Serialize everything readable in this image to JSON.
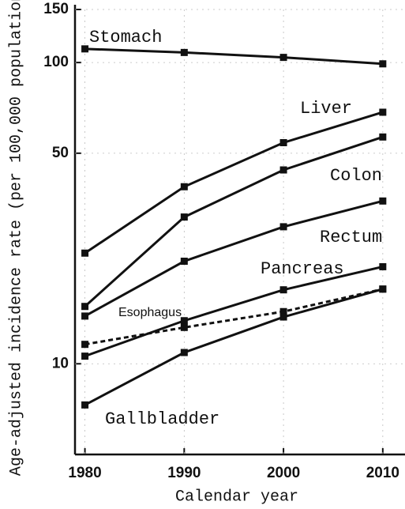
{
  "chart_data": {
    "type": "line",
    "x_label": "Calendar year",
    "y_label": "Age-adjusted incidence rate (per 100,000 population)",
    "x": [
      1980,
      1990,
      2000,
      2010
    ],
    "xlim": [
      1979,
      2012
    ],
    "xticks": [
      1980,
      1990,
      2000,
      2010
    ],
    "ylim": [
      5,
      150
    ],
    "yticks": [
      10,
      50,
      100,
      150
    ],
    "log_scale_y": true,
    "series": [
      {
        "name": "Stomach",
        "color": "#111111",
        "line_style": "solid",
        "values": [
          111,
          108,
          104,
          99
        ]
      },
      {
        "name": "Liver",
        "color": "#111111",
        "line_style": "solid",
        "values": [
          23.3,
          38.7,
          54.2,
          68.4
        ]
      },
      {
        "name": "Colon",
        "color": "#111111",
        "line_style": "solid",
        "values": [
          15.5,
          30.7,
          44,
          56.6
        ]
      },
      {
        "name": "Rectum",
        "color": "#111111",
        "line_style": "solid",
        "values": [
          14.4,
          21.9,
          28.5,
          34.7
        ]
      },
      {
        "name": "Pancreas",
        "color": "#111111",
        "line_style": "solid",
        "values": [
          10.6,
          13.9,
          17.6,
          21
        ]
      },
      {
        "name": "Esophagus",
        "color": "#111111",
        "line_style": "dashed",
        "values": [
          11.6,
          13.2,
          14.9,
          17.7
        ]
      },
      {
        "name": "Gallbladder",
        "color": "#111111",
        "line_style": "solid",
        "values": [
          7.3,
          10.9,
          14.3,
          17.7
        ]
      }
    ]
  }
}
